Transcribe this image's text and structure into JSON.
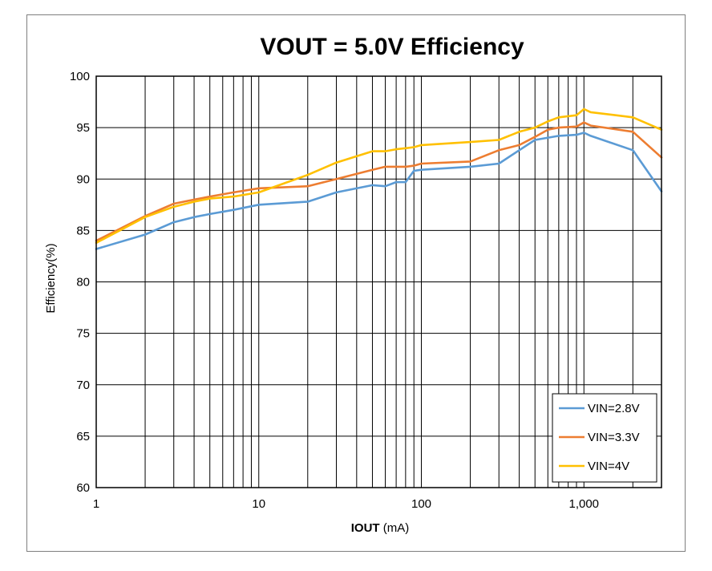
{
  "chart_data": {
    "type": "line",
    "title": "VOUT = 5.0V  Efficiency",
    "xlabel_bold": "IOUT",
    "xlabel_unit": " (mA)",
    "ylabel": "Efficiency(%)",
    "xscale": "log",
    "xlim": [
      1,
      3000
    ],
    "ylim": [
      60,
      100
    ],
    "grid": true,
    "legend_position": "bottom-right",
    "x_ticks": [
      {
        "value": 1,
        "label": "1"
      },
      {
        "value": 10,
        "label": "10"
      },
      {
        "value": 100,
        "label": "100"
      },
      {
        "value": 1000,
        "label": "1,000"
      }
    ],
    "y_ticks": [
      {
        "value": 60,
        "label": "60"
      },
      {
        "value": 65,
        "label": "65"
      },
      {
        "value": 70,
        "label": "70"
      },
      {
        "value": 75,
        "label": "75"
      },
      {
        "value": 80,
        "label": "80"
      },
      {
        "value": 85,
        "label": "85"
      },
      {
        "value": 90,
        "label": "90"
      },
      {
        "value": 95,
        "label": "95"
      },
      {
        "value": 100,
        "label": "100"
      }
    ],
    "series": [
      {
        "name": "VIN=2.8V",
        "color": "#5b9bd5",
        "x": [
          1,
          2,
          3,
          4,
          5,
          7,
          10,
          20,
          30,
          50,
          60,
          70,
          80,
          90,
          100,
          200,
          300,
          400,
          500,
          700,
          900,
          1000,
          1100,
          2000,
          3000
        ],
        "y": [
          83.2,
          84.6,
          85.8,
          86.3,
          86.6,
          87.0,
          87.5,
          87.8,
          88.7,
          89.4,
          89.3,
          89.7,
          89.7,
          90.8,
          90.9,
          91.2,
          91.5,
          92.8,
          93.8,
          94.2,
          94.3,
          94.5,
          94.2,
          92.8,
          88.8
        ]
      },
      {
        "name": "VIN=3.3V",
        "color": "#ed7d31",
        "x": [
          1,
          2,
          3,
          4,
          5,
          7,
          10,
          20,
          30,
          50,
          60,
          70,
          80,
          90,
          100,
          200,
          300,
          400,
          500,
          600,
          700,
          900,
          1000,
          1100,
          2000,
          3000
        ],
        "y": [
          84.0,
          86.4,
          87.6,
          88.0,
          88.3,
          88.7,
          89.1,
          89.3,
          90.0,
          90.9,
          91.2,
          91.2,
          91.2,
          91.3,
          91.5,
          91.7,
          92.8,
          93.3,
          94.1,
          94.8,
          95.0,
          95.1,
          95.5,
          95.2,
          94.6,
          92.1
        ]
      },
      {
        "name": "VIN=4V",
        "color": "#ffc000",
        "x": [
          1,
          2,
          3,
          4,
          5,
          7,
          10,
          20,
          30,
          50,
          60,
          70,
          80,
          90,
          100,
          200,
          300,
          400,
          500,
          600,
          700,
          900,
          1000,
          1100,
          2000,
          3000
        ],
        "y": [
          83.8,
          86.3,
          87.3,
          87.8,
          88.1,
          88.3,
          88.7,
          90.4,
          91.6,
          92.7,
          92.7,
          92.9,
          93.0,
          93.1,
          93.3,
          93.6,
          93.8,
          94.6,
          95.0,
          95.6,
          96.0,
          96.2,
          96.8,
          96.5,
          96.0,
          94.8
        ]
      }
    ]
  }
}
